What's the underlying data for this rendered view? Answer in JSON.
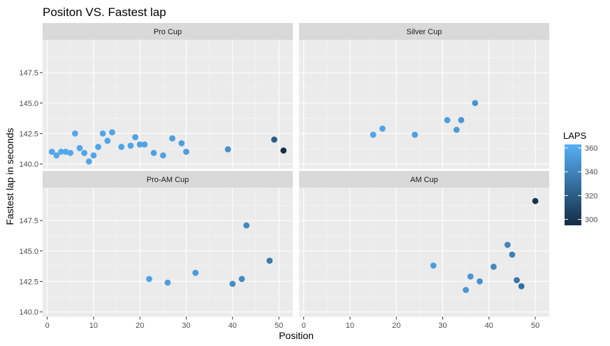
{
  "chart_data": {
    "type": "scatter",
    "title": "Positon VS. Fastest lap",
    "xlabel": "Position",
    "ylabel": "Fastest lap in seconds",
    "xlim": [
      -1,
      53
    ],
    "ylim": [
      139.6,
      150.2
    ],
    "x_ticks": [
      0,
      10,
      20,
      30,
      40,
      50
    ],
    "y_ticks": [
      140.0,
      142.5,
      145.0,
      147.5
    ],
    "x_tick_labels": [
      "0",
      "10",
      "20",
      "30",
      "40",
      "50"
    ],
    "y_tick_labels": [
      "140.0",
      "142.5",
      "145.0",
      "147.5"
    ],
    "grid": true,
    "legend": {
      "title": "LAPS",
      "placement": "right",
      "min": 295,
      "max": 363,
      "ticks": [
        300,
        320,
        340,
        360
      ],
      "tick_labels": [
        "300",
        "320",
        "340",
        "360"
      ],
      "color_low": "#132b43",
      "color_high": "#56b1f7"
    },
    "panels": [
      {
        "name": "Pro Cup",
        "points": [
          {
            "x": 1,
            "y": 141.0,
            "laps": 358
          },
          {
            "x": 2,
            "y": 140.7,
            "laps": 358
          },
          {
            "x": 3,
            "y": 141.0,
            "laps": 358
          },
          {
            "x": 4,
            "y": 141.0,
            "laps": 358
          },
          {
            "x": 5,
            "y": 140.9,
            "laps": 358
          },
          {
            "x": 6,
            "y": 142.5,
            "laps": 358
          },
          {
            "x": 7,
            "y": 141.3,
            "laps": 358
          },
          {
            "x": 8,
            "y": 140.9,
            "laps": 357
          },
          {
            "x": 9,
            "y": 140.2,
            "laps": 357
          },
          {
            "x": 10,
            "y": 140.7,
            "laps": 357
          },
          {
            "x": 11,
            "y": 141.4,
            "laps": 357
          },
          {
            "x": 12,
            "y": 142.5,
            "laps": 357
          },
          {
            "x": 13,
            "y": 141.9,
            "laps": 357
          },
          {
            "x": 14,
            "y": 142.6,
            "laps": 357
          },
          {
            "x": 16,
            "y": 141.4,
            "laps": 357
          },
          {
            "x": 18,
            "y": 141.5,
            "laps": 356
          },
          {
            "x": 19,
            "y": 142.2,
            "laps": 356
          },
          {
            "x": 20,
            "y": 141.6,
            "laps": 356
          },
          {
            "x": 21,
            "y": 141.6,
            "laps": 356
          },
          {
            "x": 23,
            "y": 140.9,
            "laps": 355
          },
          {
            "x": 25,
            "y": 140.7,
            "laps": 355
          },
          {
            "x": 27,
            "y": 142.1,
            "laps": 354
          },
          {
            "x": 29,
            "y": 141.7,
            "laps": 353
          },
          {
            "x": 30,
            "y": 141.0,
            "laps": 353
          },
          {
            "x": 39,
            "y": 141.2,
            "laps": 347
          },
          {
            "x": 49,
            "y": 142.0,
            "laps": 320
          },
          {
            "x": 51,
            "y": 141.1,
            "laps": 297
          }
        ]
      },
      {
        "name": "Silver Cup",
        "points": [
          {
            "x": 15,
            "y": 142.4,
            "laps": 357
          },
          {
            "x": 17,
            "y": 142.9,
            "laps": 356
          },
          {
            "x": 24,
            "y": 142.4,
            "laps": 355
          },
          {
            "x": 31,
            "y": 143.6,
            "laps": 353
          },
          {
            "x": 33,
            "y": 142.8,
            "laps": 352
          },
          {
            "x": 34,
            "y": 143.6,
            "laps": 351
          },
          {
            "x": 37,
            "y": 145.0,
            "laps": 349
          }
        ]
      },
      {
        "name": "Pro-AM Cup",
        "points": [
          {
            "x": 22,
            "y": 142.7,
            "laps": 356
          },
          {
            "x": 26,
            "y": 142.4,
            "laps": 354
          },
          {
            "x": 32,
            "y": 143.2,
            "laps": 352
          },
          {
            "x": 40,
            "y": 142.3,
            "laps": 345
          },
          {
            "x": 42,
            "y": 142.7,
            "laps": 344
          },
          {
            "x": 43,
            "y": 147.1,
            "laps": 343
          },
          {
            "x": 48,
            "y": 144.2,
            "laps": 335
          }
        ]
      },
      {
        "name": "AM Cup",
        "points": [
          {
            "x": 28,
            "y": 143.8,
            "laps": 353
          },
          {
            "x": 35,
            "y": 141.8,
            "laps": 350
          },
          {
            "x": 36,
            "y": 142.9,
            "laps": 349
          },
          {
            "x": 38,
            "y": 142.5,
            "laps": 347
          },
          {
            "x": 41,
            "y": 143.7,
            "laps": 343
          },
          {
            "x": 44,
            "y": 145.5,
            "laps": 340
          },
          {
            "x": 45,
            "y": 144.7,
            "laps": 338
          },
          {
            "x": 46,
            "y": 142.6,
            "laps": 333
          },
          {
            "x": 47,
            "y": 142.1,
            "laps": 330
          },
          {
            "x": 50,
            "y": 149.1,
            "laps": 300
          }
        ]
      }
    ]
  }
}
